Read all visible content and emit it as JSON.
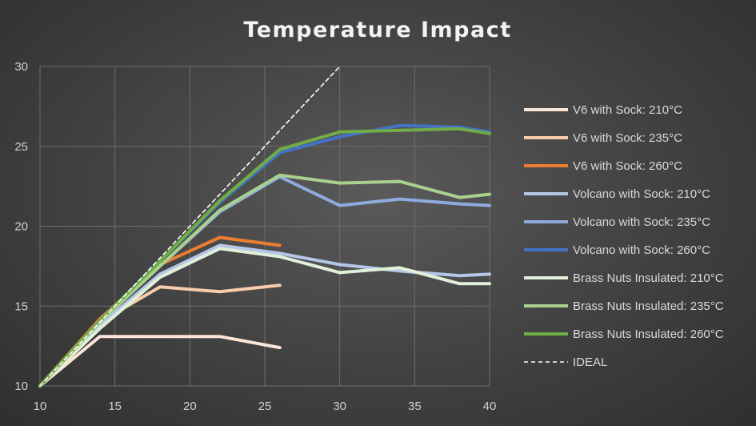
{
  "chart_data": {
    "type": "line",
    "title": "Temperature Impact",
    "xlabel": "",
    "ylabel": "",
    "xlim": [
      10,
      40
    ],
    "ylim": [
      10,
      30
    ],
    "xticks": [
      10,
      15,
      20,
      25,
      30,
      35,
      40
    ],
    "yticks": [
      10,
      15,
      20,
      25,
      30
    ],
    "grid": true,
    "legend_position": "right",
    "series": [
      {
        "name": "V6 with Sock: 210°C",
        "color": "#fbe5d6",
        "dashed": false,
        "points": [
          [
            10,
            10
          ],
          [
            14,
            13.1
          ],
          [
            18,
            13.1
          ],
          [
            22,
            13.1
          ],
          [
            26,
            12.4
          ]
        ]
      },
      {
        "name": "V6 with Sock: 235°C",
        "color": "#f8cbad",
        "dashed": false,
        "points": [
          [
            10,
            10
          ],
          [
            14,
            14.0
          ],
          [
            18,
            16.2
          ],
          [
            22,
            15.9
          ],
          [
            26,
            16.3
          ]
        ]
      },
      {
        "name": "V6 with Sock: 260°C",
        "color": "#ed7d31",
        "dashed": false,
        "points": [
          [
            10,
            10
          ],
          [
            14,
            14.2
          ],
          [
            18,
            17.6
          ],
          [
            22,
            19.3
          ],
          [
            26,
            18.8
          ]
        ]
      },
      {
        "name": "Volcano with Sock: 210°C",
        "color": "#b4c7e7",
        "dashed": false,
        "points": [
          [
            10,
            10
          ],
          [
            14,
            13.8
          ],
          [
            18,
            17.0
          ],
          [
            22,
            18.8
          ],
          [
            26,
            18.3
          ],
          [
            30,
            17.6
          ],
          [
            34,
            17.2
          ],
          [
            38,
            16.9
          ],
          [
            40,
            17.0
          ]
        ]
      },
      {
        "name": "Volcano with Sock: 235°C",
        "color": "#8faadc",
        "dashed": false,
        "points": [
          [
            10,
            10
          ],
          [
            14,
            14.0
          ],
          [
            18,
            17.5
          ],
          [
            22,
            20.9
          ],
          [
            26,
            23.1
          ],
          [
            30,
            21.3
          ],
          [
            34,
            21.7
          ],
          [
            38,
            21.4
          ],
          [
            40,
            21.3
          ]
        ]
      },
      {
        "name": "Volcano with Sock: 260°C",
        "color": "#4472c4",
        "dashed": false,
        "points": [
          [
            10,
            10
          ],
          [
            14,
            14.1
          ],
          [
            18,
            17.8
          ],
          [
            22,
            21.5
          ],
          [
            26,
            24.6
          ],
          [
            30,
            25.6
          ],
          [
            34,
            26.3
          ],
          [
            38,
            26.2
          ],
          [
            40,
            25.9
          ]
        ]
      },
      {
        "name": "Brass Nuts Insulated: 210°C",
        "color": "#e2f0d9",
        "dashed": false,
        "points": [
          [
            10,
            10
          ],
          [
            14,
            13.6
          ],
          [
            18,
            16.8
          ],
          [
            22,
            18.6
          ],
          [
            26,
            18.1
          ],
          [
            30,
            17.1
          ],
          [
            34,
            17.4
          ],
          [
            38,
            16.4
          ],
          [
            40,
            16.4
          ]
        ]
      },
      {
        "name": "Brass Nuts Insulated: 235°C",
        "color": "#a9d18e",
        "dashed": false,
        "points": [
          [
            10,
            10
          ],
          [
            14,
            14.0
          ],
          [
            18,
            17.5
          ],
          [
            22,
            21.0
          ],
          [
            26,
            23.2
          ],
          [
            30,
            22.7
          ],
          [
            34,
            22.8
          ],
          [
            38,
            21.8
          ],
          [
            40,
            22.0
          ]
        ]
      },
      {
        "name": "Brass Nuts Insulated: 260°C",
        "color": "#70ad47",
        "dashed": false,
        "points": [
          [
            10,
            10
          ],
          [
            14,
            14.1
          ],
          [
            18,
            17.8
          ],
          [
            22,
            21.6
          ],
          [
            26,
            24.8
          ],
          [
            30,
            25.9
          ],
          [
            34,
            26.0
          ],
          [
            38,
            26.1
          ],
          [
            40,
            25.8
          ]
        ]
      },
      {
        "name": "IDEAL",
        "color": "#ffffff",
        "dashed": true,
        "points": [
          [
            10,
            10
          ],
          [
            30,
            30
          ]
        ]
      }
    ]
  }
}
